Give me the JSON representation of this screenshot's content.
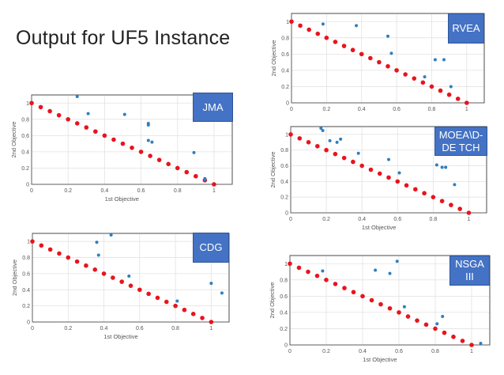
{
  "slide": {
    "title": "Output for UF5 Instance"
  },
  "colors": {
    "reference": "#e8141e",
    "solutions": "#2e7fbf",
    "badge": "#4472c4"
  },
  "chart_data": [
    {
      "type": "scatter",
      "label": "JMA",
      "xlabel": "1st Objective",
      "ylabel": "2nd Objective",
      "xlim": [
        0,
        1.1
      ],
      "ylim": [
        0,
        1.1
      ],
      "grid": true,
      "xticks": [
        "0",
        "0.2",
        "0.4",
        "0.6",
        "0.8",
        "1"
      ],
      "yticks": [
        "0",
        "0.2",
        "0.4",
        "0.6",
        "0.8",
        "1"
      ],
      "reference_front": {
        "x": [
          0,
          0.05,
          0.1,
          0.15,
          0.2,
          0.25,
          0.3,
          0.35,
          0.4,
          0.45,
          0.5,
          0.55,
          0.6,
          0.65,
          0.7,
          0.75,
          0.8,
          0.85,
          0.9,
          0.95,
          1
        ],
        "y": [
          1,
          0.95,
          0.9,
          0.85,
          0.8,
          0.75,
          0.7,
          0.65,
          0.6,
          0.55,
          0.5,
          0.45,
          0.4,
          0.35,
          0.3,
          0.25,
          0.2,
          0.15,
          0.1,
          0.05,
          0
        ]
      },
      "solutions": {
        "x": [
          0.25,
          0.31,
          0.51,
          0.64,
          0.64,
          0.64,
          0.66,
          0.89,
          0.95,
          0.95
        ],
        "y": [
          1.08,
          0.87,
          0.86,
          0.75,
          0.73,
          0.54,
          0.52,
          0.39,
          0.07,
          0.06
        ]
      }
    },
    {
      "type": "scatter",
      "label": "RVEA",
      "xlabel": "",
      "ylabel": "2nd Objective",
      "xlim": [
        0,
        1.1
      ],
      "ylim": [
        0,
        1.1
      ],
      "grid": true,
      "xticks": [
        "0",
        "0.2",
        "0.4",
        "0.6",
        "0.8",
        "1"
      ],
      "yticks": [
        "0",
        "0.2",
        "0.4",
        "0.6",
        "0.8",
        "1"
      ],
      "reference_front": {
        "x": [
          0,
          0.05,
          0.1,
          0.15,
          0.2,
          0.25,
          0.3,
          0.35,
          0.4,
          0.45,
          0.5,
          0.55,
          0.6,
          0.65,
          0.7,
          0.75,
          0.8,
          0.85,
          0.9,
          0.95,
          1
        ],
        "y": [
          1,
          0.95,
          0.9,
          0.85,
          0.8,
          0.75,
          0.7,
          0.65,
          0.6,
          0.55,
          0.5,
          0.45,
          0.4,
          0.35,
          0.3,
          0.25,
          0.2,
          0.15,
          0.1,
          0.05,
          0
        ]
      },
      "solutions": {
        "x": [
          0.18,
          0.37,
          0.55,
          0.57,
          0.76,
          0.82,
          0.87,
          0.91
        ],
        "y": [
          0.97,
          0.95,
          0.82,
          0.61,
          0.32,
          0.53,
          0.53,
          0.2
        ]
      }
    },
    {
      "type": "scatter",
      "label": "MOEA\\D-DE TCH",
      "xlabel": "1st Objective",
      "ylabel": "2nd Objective",
      "xlim": [
        0,
        1.1
      ],
      "ylim": [
        0,
        1.1
      ],
      "grid": true,
      "xticks": [
        "0",
        "0.2",
        "0.4",
        "0.6",
        "0.8",
        "1"
      ],
      "yticks": [
        "0",
        "0.2",
        "0.4",
        "0.6",
        "0.8",
        "1"
      ],
      "reference_front": {
        "x": [
          0,
          0.05,
          0.1,
          0.15,
          0.2,
          0.25,
          0.3,
          0.35,
          0.4,
          0.45,
          0.5,
          0.55,
          0.6,
          0.65,
          0.7,
          0.75,
          0.8,
          0.85,
          0.9,
          0.95,
          1
        ],
        "y": [
          1,
          0.95,
          0.9,
          0.85,
          0.8,
          0.75,
          0.7,
          0.65,
          0.6,
          0.55,
          0.5,
          0.45,
          0.4,
          0.35,
          0.3,
          0.25,
          0.2,
          0.15,
          0.1,
          0.05,
          0
        ]
      },
      "solutions": {
        "x": [
          0.17,
          0.18,
          0.22,
          0.26,
          0.28,
          0.38,
          0.55,
          0.61,
          0.82,
          0.85,
          0.87,
          0.92
        ],
        "y": [
          1.08,
          1.05,
          0.92,
          0.9,
          0.94,
          0.76,
          0.68,
          0.51,
          0.61,
          0.58,
          0.58,
          0.36
        ]
      }
    },
    {
      "type": "scatter",
      "label": "CDG",
      "xlabel": "1st Objective",
      "ylabel": "2nd Objective",
      "xlim": [
        0,
        1.1
      ],
      "ylim": [
        0,
        1.1
      ],
      "grid": true,
      "xticks": [
        "0",
        "0.2",
        "0.4",
        "0.6",
        "0.8",
        "1"
      ],
      "yticks": [
        "0",
        "0.2",
        "0.4",
        "0.6",
        "0.8",
        "1"
      ],
      "reference_front": {
        "x": [
          0,
          0.05,
          0.1,
          0.15,
          0.2,
          0.25,
          0.3,
          0.35,
          0.4,
          0.45,
          0.5,
          0.55,
          0.6,
          0.65,
          0.7,
          0.75,
          0.8,
          0.85,
          0.9,
          0.95,
          1
        ],
        "y": [
          1,
          0.95,
          0.9,
          0.85,
          0.8,
          0.75,
          0.7,
          0.65,
          0.6,
          0.55,
          0.5,
          0.45,
          0.4,
          0.35,
          0.3,
          0.25,
          0.2,
          0.15,
          0.1,
          0.05,
          0
        ]
      },
      "solutions": {
        "x": [
          0.36,
          0.37,
          0.44,
          0.54,
          0.81,
          1.0,
          1.06
        ],
        "y": [
          0.99,
          0.83,
          1.08,
          0.57,
          0.26,
          0.48,
          0.36
        ]
      }
    },
    {
      "type": "scatter",
      "label": "NSGA III",
      "xlabel": "1st Objective",
      "ylabel": "2nd Objective",
      "xlim": [
        0,
        1.1
      ],
      "ylim": [
        0,
        1.1
      ],
      "grid": true,
      "xticks": [
        "0",
        "0.2",
        "0.4",
        "0.6",
        "0.8",
        "1"
      ],
      "yticks": [
        "0",
        "0.2",
        "0.4",
        "0.6",
        "0.8",
        "1"
      ],
      "reference_front": {
        "x": [
          0,
          0.05,
          0.1,
          0.15,
          0.2,
          0.25,
          0.3,
          0.35,
          0.4,
          0.45,
          0.5,
          0.55,
          0.6,
          0.65,
          0.7,
          0.75,
          0.8,
          0.85,
          0.9,
          0.95,
          1
        ],
        "y": [
          1,
          0.95,
          0.9,
          0.85,
          0.8,
          0.75,
          0.7,
          0.65,
          0.6,
          0.55,
          0.5,
          0.45,
          0.4,
          0.35,
          0.3,
          0.25,
          0.2,
          0.15,
          0.1,
          0.05,
          0
        ]
      },
      "solutions": {
        "x": [
          0.18,
          0.47,
          0.55,
          0.59,
          0.63,
          0.81,
          0.84,
          1.05
        ],
        "y": [
          0.91,
          0.92,
          0.88,
          1.03,
          0.47,
          0.26,
          0.35,
          0.02
        ]
      }
    }
  ]
}
